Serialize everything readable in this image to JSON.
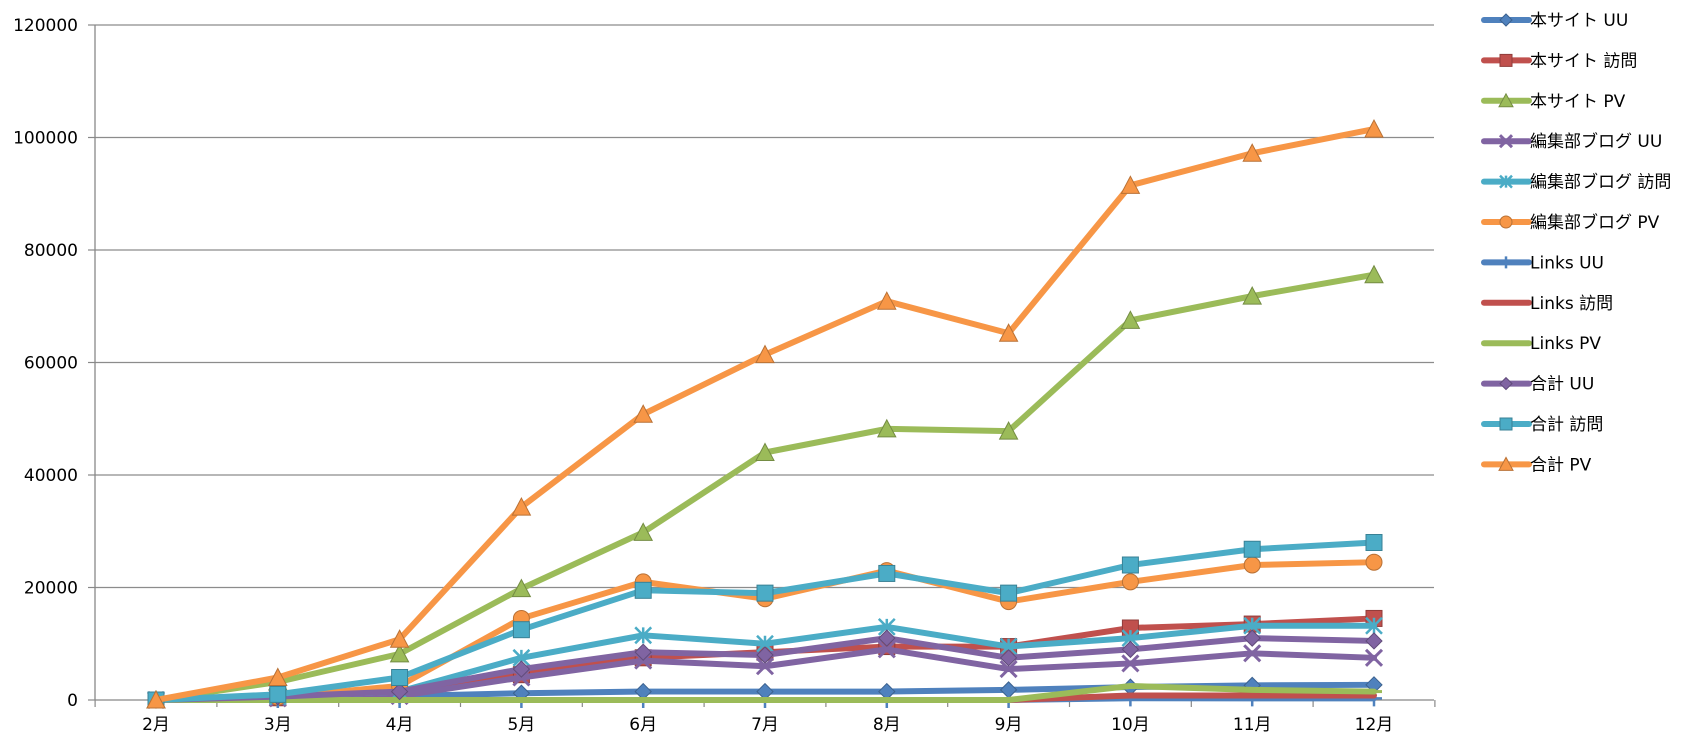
{
  "chart_data": {
    "type": "line",
    "title": "",
    "xlabel": "",
    "ylabel": "",
    "categories": [
      "2月",
      "3月",
      "4月",
      "5月",
      "6月",
      "7月",
      "8月",
      "9月",
      "10月",
      "11月",
      "12月"
    ],
    "ylim": [
      0,
      120000
    ],
    "yticks": [
      0,
      20000,
      40000,
      60000,
      80000,
      100000,
      120000
    ],
    "grid": true,
    "legend_position": "right",
    "series": [
      {
        "name": "本サイト UU",
        "color": "#4F81BD",
        "marker": "diamond",
        "values": [
          0,
          300,
          700,
          1200,
          1500,
          1500,
          1500,
          1800,
          2300,
          2600,
          2700
        ]
      },
      {
        "name": "本サイト 訪問",
        "color": "#C0504D",
        "marker": "square",
        "values": [
          0,
          400,
          1000,
          4500,
          7500,
          8500,
          9500,
          9500,
          12800,
          13500,
          14500
        ]
      },
      {
        "name": "本サイト PV",
        "color": "#9BBB59",
        "marker": "triangle",
        "values": [
          0,
          3200,
          8200,
          19800,
          29800,
          44000,
          48200,
          47800,
          67500,
          71800,
          75600
        ]
      },
      {
        "name": "編集部ブログ UU",
        "color": "#8064A2",
        "marker": "x",
        "values": [
          0,
          300,
          700,
          4000,
          7000,
          6000,
          9000,
          5500,
          6500,
          8300,
          7500
        ]
      },
      {
        "name": "編集部ブログ 訪問",
        "color": "#4BACC6",
        "marker": "star",
        "values": [
          0,
          600,
          1500,
          7500,
          11500,
          10000,
          13000,
          9500,
          11000,
          13200,
          13200
        ]
      },
      {
        "name": "編集部ブログ PV",
        "color": "#F79646",
        "marker": "circle",
        "values": [
          0,
          500,
          2500,
          14500,
          21000,
          18000,
          23000,
          17500,
          21000,
          24000,
          24500
        ]
      },
      {
        "name": "Links UU",
        "color": "#4F81BD",
        "marker": "plus",
        "values": [
          0,
          0,
          0,
          0,
          0,
          0,
          0,
          0,
          300,
          300,
          300
        ]
      },
      {
        "name": "Links 訪問",
        "color": "#C0504D",
        "marker": "none",
        "values": [
          0,
          0,
          0,
          0,
          0,
          0,
          0,
          0,
          800,
          800,
          800
        ]
      },
      {
        "name": "Links PV",
        "color": "#9BBB59",
        "marker": "dash",
        "values": [
          0,
          0,
          0,
          0,
          0,
          0,
          0,
          0,
          2500,
          1800,
          1500
        ]
      },
      {
        "name": "合計 UU",
        "color": "#8064A2",
        "marker": "diamond",
        "values": [
          0,
          600,
          1500,
          5500,
          8500,
          8000,
          11000,
          7500,
          9000,
          11000,
          10500
        ]
      },
      {
        "name": "合計 訪問",
        "color": "#4BACC6",
        "marker": "square",
        "values": [
          0,
          1000,
          4000,
          12500,
          19500,
          19000,
          22500,
          19000,
          24000,
          26800,
          28000
        ]
      },
      {
        "name": "合計 PV",
        "color": "#F79646",
        "marker": "triangle",
        "values": [
          0,
          4000,
          10800,
          34300,
          50800,
          61400,
          70900,
          65200,
          91500,
          97200,
          101500
        ]
      }
    ]
  }
}
